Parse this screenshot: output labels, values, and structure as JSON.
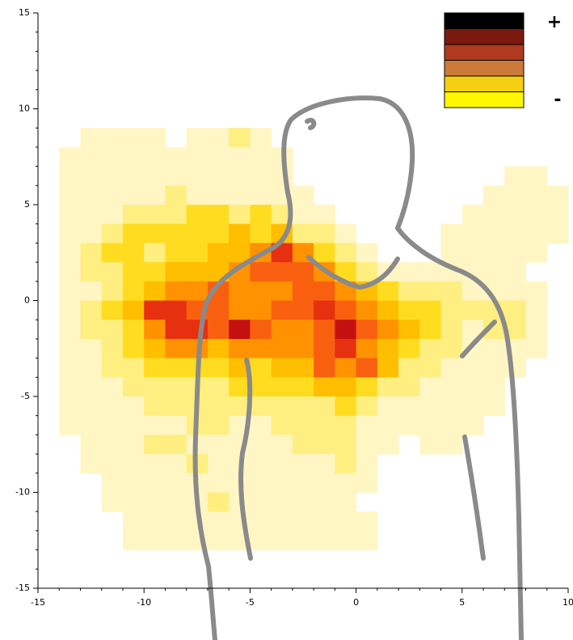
{
  "chart_data": {
    "type": "heatmap",
    "x": [
      -14,
      -13,
      -12,
      -11,
      -10,
      -9,
      -8,
      -7,
      -6,
      -5,
      -4,
      -3,
      -2,
      -1,
      0,
      1,
      2,
      3,
      4,
      5,
      6,
      7,
      8,
      9
    ],
    "y": [
      8,
      7,
      6,
      5,
      4,
      3,
      2,
      1,
      0,
      -1,
      -2,
      -3,
      -4,
      -5,
      -6,
      -7,
      -8,
      -9,
      -10,
      -11,
      -12,
      -13
    ],
    "z": [
      [
        0,
        1,
        1,
        1,
        1,
        0,
        1,
        1,
        2,
        1,
        0,
        0,
        0,
        0,
        0,
        0,
        0,
        0,
        0,
        0,
        0,
        0,
        0,
        0
      ],
      [
        1,
        1,
        1,
        1,
        1,
        1,
        1,
        1,
        1,
        1,
        1,
        0,
        0,
        0,
        0,
        0,
        0,
        0,
        0,
        0,
        0,
        0,
        0,
        0
      ],
      [
        1,
        1,
        1,
        1,
        1,
        1,
        1,
        1,
        1,
        1,
        1,
        0,
        0,
        0,
        0,
        0,
        0,
        0,
        0,
        0,
        0,
        1,
        1,
        0
      ],
      [
        1,
        1,
        1,
        1,
        1,
        2,
        1,
        1,
        1,
        1,
        1,
        1,
        0,
        0,
        0,
        0,
        0,
        0,
        0,
        0,
        1,
        1,
        1,
        1
      ],
      [
        1,
        1,
        1,
        2,
        2,
        2,
        3,
        3,
        2,
        3,
        2,
        1,
        1,
        0,
        0,
        0,
        0,
        0,
        0,
        1,
        1,
        1,
        1,
        1
      ],
      [
        1,
        1,
        2,
        3,
        3,
        3,
        3,
        3,
        4,
        3,
        4,
        2,
        2,
        1,
        0,
        0,
        0,
        0,
        1,
        1,
        1,
        1,
        1,
        1
      ],
      [
        1,
        2,
        3,
        3,
        2,
        3,
        3,
        4,
        4,
        5,
        7,
        5,
        3,
        2,
        1,
        0,
        0,
        0,
        1,
        1,
        1,
        1,
        1,
        0
      ],
      [
        1,
        2,
        2,
        3,
        3,
        4,
        4,
        4,
        5,
        6,
        6,
        6,
        5,
        3,
        2,
        1,
        1,
        1,
        1,
        1,
        1,
        1,
        0,
        0
      ],
      [
        1,
        1,
        2,
        3,
        4,
        5,
        5,
        6,
        5,
        5,
        5,
        6,
        6,
        5,
        4,
        3,
        2,
        2,
        2,
        1,
        1,
        1,
        1,
        0
      ],
      [
        1,
        2,
        3,
        4,
        7,
        7,
        6,
        6,
        5,
        5,
        6,
        6,
        7,
        6,
        5,
        4,
        3,
        3,
        2,
        2,
        2,
        2,
        1,
        0
      ],
      [
        1,
        2,
        2,
        3,
        5,
        7,
        7,
        6,
        8,
        6,
        5,
        5,
        6,
        8,
        6,
        5,
        4,
        3,
        2,
        1,
        2,
        2,
        1,
        0
      ],
      [
        1,
        1,
        2,
        3,
        4,
        5,
        5,
        4,
        5,
        5,
        5,
        5,
        6,
        7,
        5,
        4,
        3,
        2,
        2,
        1,
        1,
        1,
        1,
        0
      ],
      [
        1,
        1,
        2,
        2,
        3,
        3,
        3,
        3,
        4,
        3,
        4,
        4,
        6,
        5,
        6,
        4,
        2,
        2,
        1,
        1,
        1,
        1,
        0,
        0
      ],
      [
        1,
        1,
        1,
        2,
        2,
        2,
        2,
        2,
        3,
        3,
        3,
        3,
        4,
        4,
        3,
        2,
        2,
        1,
        1,
        1,
        1,
        0,
        0,
        0
      ],
      [
        1,
        1,
        1,
        1,
        2,
        2,
        2,
        2,
        2,
        2,
        2,
        2,
        2,
        3,
        2,
        1,
        1,
        1,
        1,
        1,
        1,
        0,
        0,
        0
      ],
      [
        1,
        1,
        1,
        1,
        1,
        1,
        2,
        2,
        1,
        1,
        2,
        2,
        2,
        2,
        1,
        1,
        1,
        1,
        1,
        1,
        0,
        0,
        0,
        0
      ],
      [
        0,
        1,
        1,
        1,
        2,
        2,
        1,
        1,
        1,
        1,
        1,
        2,
        2,
        2,
        1,
        1,
        0,
        1,
        1,
        0,
        0,
        0,
        0,
        0
      ],
      [
        0,
        1,
        1,
        1,
        1,
        1,
        2,
        1,
        1,
        1,
        1,
        1,
        1,
        2,
        1,
        0,
        0,
        0,
        0,
        0,
        0,
        0,
        0,
        0
      ],
      [
        0,
        0,
        1,
        1,
        1,
        1,
        1,
        1,
        1,
        1,
        1,
        1,
        1,
        1,
        1,
        0,
        0,
        0,
        0,
        0,
        0,
        0,
        0,
        0
      ],
      [
        0,
        0,
        1,
        1,
        1,
        1,
        1,
        2,
        1,
        1,
        1,
        1,
        1,
        1,
        0,
        0,
        0,
        0,
        0,
        0,
        0,
        0,
        0,
        0
      ],
      [
        0,
        0,
        0,
        1,
        1,
        1,
        1,
        1,
        1,
        1,
        1,
        1,
        1,
        1,
        1,
        0,
        0,
        0,
        0,
        0,
        0,
        0,
        0,
        0
      ],
      [
        0,
        0,
        0,
        1,
        1,
        1,
        1,
        1,
        1,
        1,
        1,
        1,
        1,
        1,
        1,
        0,
        0,
        0,
        0,
        0,
        0,
        0,
        0,
        0
      ]
    ],
    "cell_colors": [
      "#ffffff",
      "#fff6c4",
      "#ffee80",
      "#ffdc20",
      "#ffbe00",
      "#ff9200",
      "#f86010",
      "#e63010",
      "#c41010",
      "#801008"
    ],
    "xlim": [
      -15,
      10
    ],
    "ylim": [
      -15,
      15
    ],
    "xticks": [
      -15,
      -10,
      -5,
      0,
      5,
      10
    ],
    "yticks": [
      -15,
      -10,
      -5,
      0,
      5,
      10,
      15
    ],
    "x_minor_ticks": [
      -14,
      -13,
      -12,
      -11,
      -9,
      -8,
      -7,
      -6,
      -4,
      -3,
      -2,
      -1,
      1,
      2,
      3,
      4,
      6,
      7,
      8,
      9
    ],
    "y_minor_ticks": [
      -14,
      -13,
      -12,
      -11,
      -9,
      -8,
      -7,
      -6,
      -4,
      -3,
      -2,
      -1,
      1,
      2,
      3,
      4,
      6,
      7,
      8,
      9,
      11,
      12,
      13,
      14
    ],
    "legend": {
      "colors": [
        "#000000",
        "#7a1a0e",
        "#b03a20",
        "#cc7a3a",
        "#f5d010",
        "#fff700"
      ],
      "top_label": "+",
      "bottom_label": "-"
    }
  }
}
